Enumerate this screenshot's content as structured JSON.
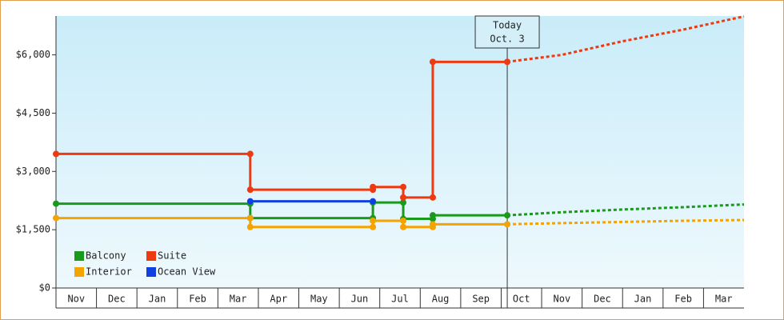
{
  "chart_data": {
    "type": "line",
    "categories": [
      "Nov",
      "Dec",
      "Jan",
      "Feb",
      "Mar",
      "Apr",
      "May",
      "Jun",
      "Jul",
      "Aug",
      "Sep",
      "Oct",
      "Nov",
      "Dec",
      "Jan",
      "Feb",
      "Mar"
    ],
    "xlim": [
      0,
      17
    ],
    "ylim": [
      0,
      7000
    ],
    "yticks": [
      {
        "value": 0,
        "label": "$0"
      },
      {
        "value": 1500,
        "label": "$1,500"
      },
      {
        "value": 3000,
        "label": "$3,000"
      },
      {
        "value": 4500,
        "label": "$4,500"
      },
      {
        "value": 6000,
        "label": "$6,000"
      }
    ],
    "today": {
      "label": [
        "Today",
        "Oct. 3"
      ],
      "x": 11.15
    },
    "series": [
      {
        "name": "Balcony",
        "color": "#1a9a1a",
        "x": [
          0,
          4.8,
          4.8,
          7.83,
          7.83,
          8.58,
          8.58,
          9.31,
          9.31,
          11.15
        ],
        "values": [
          2170,
          2170,
          1800,
          1800,
          2200,
          2200,
          1780,
          1780,
          1870,
          1870
        ],
        "forecast_x": [
          11.15,
          12.5,
          14,
          15.5,
          17
        ],
        "forecast_values": [
          1870,
          1950,
          2020,
          2080,
          2150
        ]
      },
      {
        "name": "Suite",
        "color": "#ee3a10",
        "x": [
          0,
          4.8,
          4.8,
          7.83,
          7.83,
          8.58,
          8.58,
          9.31,
          9.31,
          11.15
        ],
        "values": [
          3450,
          3450,
          2530,
          2530,
          2600,
          2600,
          2330,
          2330,
          5820,
          5820
        ],
        "forecast_x": [
          11.15,
          12.5,
          14,
          15.5,
          17
        ],
        "forecast_values": [
          5820,
          6000,
          6350,
          6650,
          6990
        ]
      },
      {
        "name": "Interior",
        "color": "#f5a300",
        "x": [
          0,
          4.8,
          4.8,
          7.83,
          7.83,
          8.58,
          8.58,
          9.31,
          9.31,
          11.15
        ],
        "values": [
          1800,
          1800,
          1570,
          1570,
          1730,
          1730,
          1570,
          1570,
          1640,
          1640
        ],
        "forecast_x": [
          11.15,
          12.5,
          14,
          15.5,
          17
        ],
        "forecast_values": [
          1640,
          1670,
          1700,
          1730,
          1750
        ]
      },
      {
        "name": "Ocean View",
        "color": "#1040e0",
        "x": [
          4.8,
          7.83
        ],
        "values": [
          2230,
          2230
        ]
      }
    ]
  }
}
